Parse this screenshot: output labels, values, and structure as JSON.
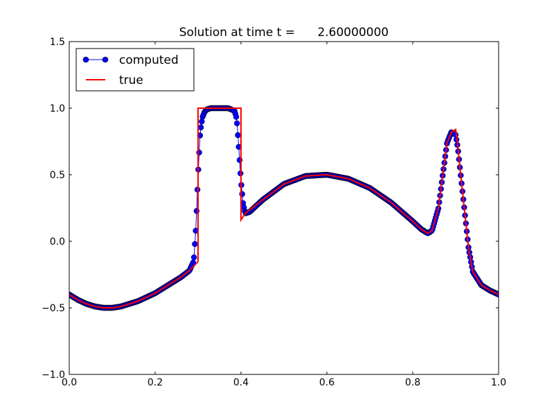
{
  "chart_data": {
    "type": "line",
    "title": "Solution at time t =      2.60000000",
    "xlabel": "",
    "ylabel": "",
    "xlim": [
      0.0,
      1.0
    ],
    "ylim": [
      -1.0,
      1.5
    ],
    "x_ticks": [
      "0.0",
      "0.2",
      "0.4",
      "0.6",
      "0.8",
      "1.0"
    ],
    "y_ticks": [
      "−1.0",
      "−0.5",
      "0.0",
      "0.5",
      "1.0",
      "1.5"
    ],
    "grid": false,
    "legend": {
      "placement": "top-left",
      "entries": [
        "computed",
        "true"
      ]
    },
    "series": [
      {
        "name": "computed",
        "color": "#0000ff",
        "marker": "circle",
        "x": [
          0.0,
          0.02,
          0.04,
          0.06,
          0.08,
          0.1,
          0.12,
          0.14,
          0.16,
          0.18,
          0.2,
          0.22,
          0.24,
          0.26,
          0.28,
          0.29,
          0.295,
          0.3,
          0.305,
          0.31,
          0.315,
          0.32,
          0.33,
          0.35,
          0.37,
          0.385,
          0.39,
          0.395,
          0.4,
          0.405,
          0.41,
          0.42,
          0.45,
          0.5,
          0.55,
          0.6,
          0.65,
          0.7,
          0.75,
          0.8,
          0.82,
          0.835,
          0.845,
          0.86,
          0.87,
          0.88,
          0.89,
          0.9,
          0.905,
          0.91,
          0.92,
          0.93,
          0.94,
          0.96,
          0.98,
          1.0
        ],
        "y": [
          -0.4,
          -0.44,
          -0.47,
          -0.49,
          -0.5,
          -0.5,
          -0.49,
          -0.47,
          -0.45,
          -0.42,
          -0.39,
          -0.35,
          -0.31,
          -0.27,
          -0.22,
          -0.15,
          0.1,
          0.5,
          0.82,
          0.93,
          0.97,
          0.99,
          1.0,
          1.0,
          1.0,
          0.98,
          0.92,
          0.7,
          0.45,
          0.28,
          0.21,
          0.22,
          0.31,
          0.43,
          0.49,
          0.5,
          0.47,
          0.4,
          0.29,
          0.15,
          0.09,
          0.06,
          0.08,
          0.25,
          0.5,
          0.74,
          0.82,
          0.8,
          0.7,
          0.55,
          0.25,
          -0.05,
          -0.23,
          -0.33,
          -0.37,
          -0.4
        ]
      },
      {
        "name": "true",
        "color": "#ff0000",
        "x": [
          0.0,
          0.02,
          0.04,
          0.06,
          0.08,
          0.1,
          0.12,
          0.14,
          0.16,
          0.18,
          0.2,
          0.22,
          0.24,
          0.26,
          0.28,
          0.298,
          0.3,
          0.3,
          0.4,
          0.4,
          0.402,
          0.41,
          0.45,
          0.5,
          0.55,
          0.6,
          0.65,
          0.7,
          0.75,
          0.8,
          0.82,
          0.835,
          0.845,
          0.86,
          0.87,
          0.88,
          0.89,
          0.9,
          0.905,
          0.91,
          0.92,
          0.93,
          0.94,
          0.96,
          0.98,
          1.0
        ],
        "y": [
          -0.4,
          -0.44,
          -0.47,
          -0.49,
          -0.5,
          -0.5,
          -0.49,
          -0.47,
          -0.45,
          -0.42,
          -0.39,
          -0.35,
          -0.31,
          -0.27,
          -0.22,
          -0.16,
          -0.15,
          1.0,
          1.0,
          0.16,
          0.17,
          0.21,
          0.31,
          0.43,
          0.49,
          0.5,
          0.47,
          0.4,
          0.29,
          0.15,
          0.09,
          0.06,
          0.08,
          0.25,
          0.5,
          0.74,
          0.82,
          0.84,
          0.72,
          0.55,
          0.25,
          -0.05,
          -0.23,
          -0.33,
          -0.37,
          -0.4
        ]
      }
    ]
  }
}
